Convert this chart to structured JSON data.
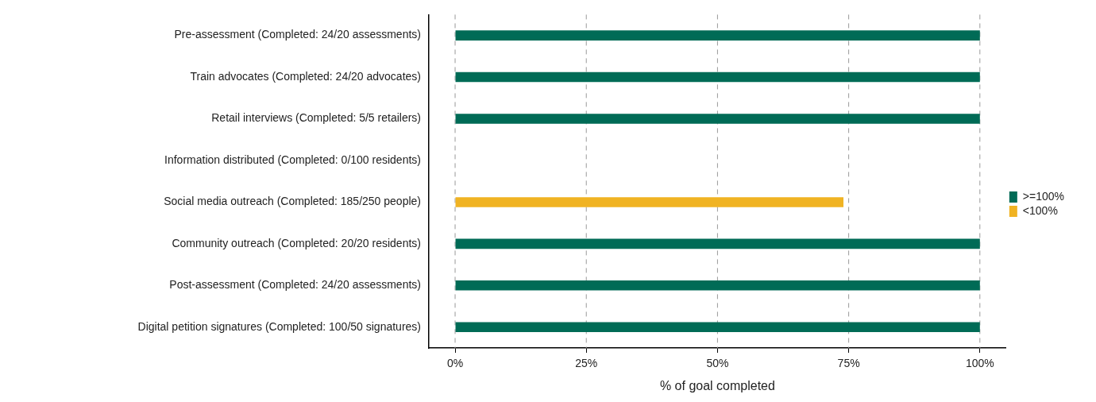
{
  "chart_data": {
    "type": "bar",
    "orientation": "horizontal",
    "stacked": true,
    "xlabel": "% of goal completed",
    "categories": [
      "Pre-assessment (Completed: 24/20 assessments)",
      "Train advocates (Completed: 24/20 advocates)",
      "Retail interviews (Completed: 5/5 retailers)",
      "Information distributed (Completed: 0/100 residents)",
      "Social media outreach (Completed: 185/250 people)",
      "Community outreach (Completed: 20/20 residents)",
      "Post-assessment (Completed: 24/20 assessments)",
      "Digital petition signatures (Completed: 100/50 signatures)"
    ],
    "series": [
      {
        "name": ">=100%",
        "color": "#006b56",
        "values": [
          100,
          100,
          100,
          null,
          null,
          100,
          100,
          100
        ]
      },
      {
        "name": "<100%",
        "color": "#f0b323",
        "values": [
          null,
          null,
          null,
          0,
          74,
          null,
          null,
          null
        ]
      }
    ],
    "xlim": [
      -5,
      105
    ],
    "xticks": [
      {
        "value": 0,
        "label": "0%"
      },
      {
        "value": 25,
        "label": "25%"
      },
      {
        "value": 50,
        "label": "50%"
      },
      {
        "value": 75,
        "label": "75%"
      },
      {
        "value": 100,
        "label": "100%"
      }
    ],
    "grid": "x",
    "legend": "right"
  }
}
